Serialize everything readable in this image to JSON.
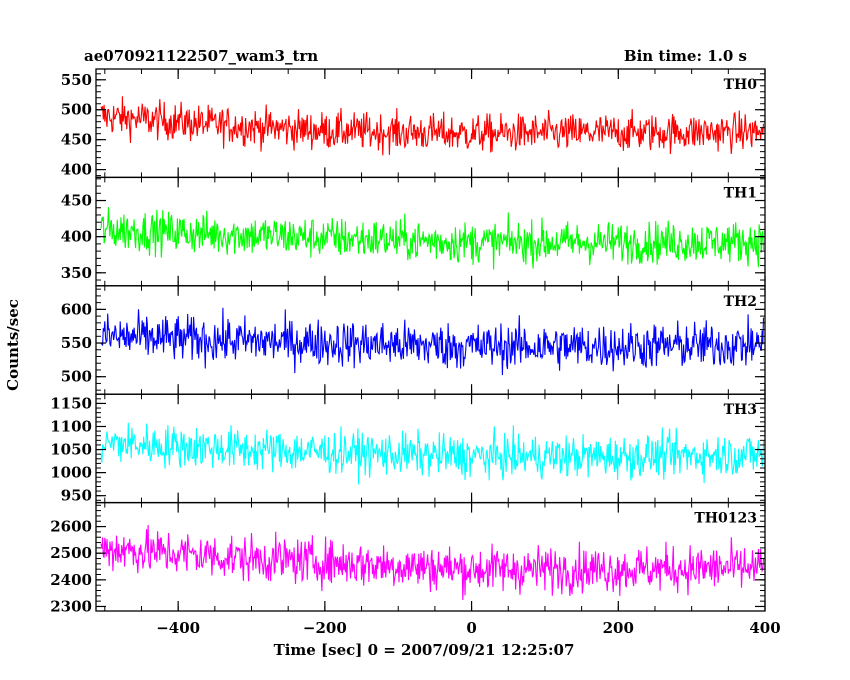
{
  "title_left": "ae070921122507_wam3_trn",
  "title_right": "Bin time: 1.0 s",
  "ylabel": "Counts/sec",
  "xlabel": "Time [sec] 0 = 2007/09/21 12:25:07",
  "chart_data": {
    "type": "line",
    "x_range": [
      -512,
      400
    ],
    "x_ticks": [
      -400,
      -200,
      0,
      200,
      400
    ],
    "bin_time_s": 1.0,
    "panels": [
      {
        "name": "TH0",
        "color": "#ff0000",
        "ylim": [
          387,
          568
        ],
        "yticks": [
          400,
          450,
          500,
          550
        ],
        "trend": [
          {
            "x": -512,
            "y": 490
          },
          {
            "x": -350,
            "y": 475
          },
          {
            "x": -200,
            "y": 465
          },
          {
            "x": 0,
            "y": 460
          },
          {
            "x": 200,
            "y": 462
          },
          {
            "x": 400,
            "y": 463
          }
        ],
        "noise_sd": 22
      },
      {
        "name": "TH1",
        "color": "#00ff00",
        "ylim": [
          332,
          482
        ],
        "yticks": [
          350,
          400,
          450
        ],
        "trend": [
          {
            "x": -512,
            "y": 410
          },
          {
            "x": -300,
            "y": 402
          },
          {
            "x": 0,
            "y": 392
          },
          {
            "x": 200,
            "y": 392
          },
          {
            "x": 400,
            "y": 393
          }
        ],
        "noise_sd": 20
      },
      {
        "name": "TH2",
        "color": "#0000ff",
        "ylim": [
          474,
          635
        ],
        "yticks": [
          500,
          550,
          600
        ],
        "trend": [
          {
            "x": -512,
            "y": 560
          },
          {
            "x": -300,
            "y": 553
          },
          {
            "x": 0,
            "y": 545
          },
          {
            "x": 200,
            "y": 545
          },
          {
            "x": 400,
            "y": 548
          }
        ],
        "noise_sd": 24
      },
      {
        "name": "TH3",
        "color": "#00ffff",
        "ylim": [
          935,
          1170
        ],
        "yticks": [
          950,
          1000,
          1050,
          1100,
          1150
        ],
        "trend": [
          {
            "x": -512,
            "y": 1065
          },
          {
            "x": -300,
            "y": 1050
          },
          {
            "x": 0,
            "y": 1035
          },
          {
            "x": 200,
            "y": 1035
          },
          {
            "x": 400,
            "y": 1040
          }
        ],
        "noise_sd": 32
      },
      {
        "name": "TH0123",
        "color": "#ff00ff",
        "ylim": [
          2283,
          2690
        ],
        "yticks": [
          2300,
          2400,
          2500,
          2600
        ],
        "trend": [
          {
            "x": -512,
            "y": 2520
          },
          {
            "x": -300,
            "y": 2480
          },
          {
            "x": 0,
            "y": 2440
          },
          {
            "x": 200,
            "y": 2440
          },
          {
            "x": 400,
            "y": 2445
          }
        ],
        "noise_sd": 60
      }
    ]
  }
}
